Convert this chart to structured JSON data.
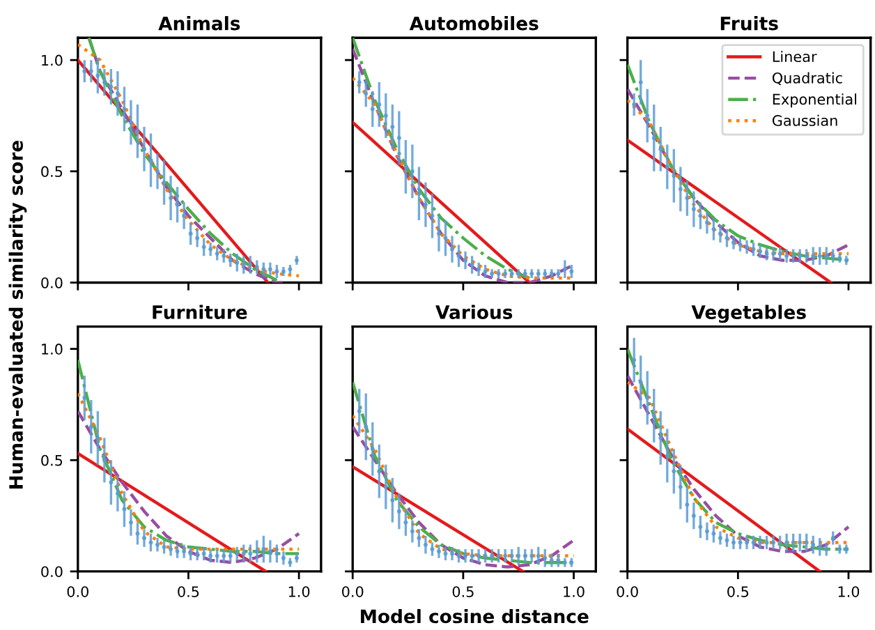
{
  "chart_data": [
    {
      "type": "line",
      "title": "Animals",
      "ylabel": "Human-evaluated similarity score",
      "xlim": [
        0,
        1.1
      ],
      "ylim": [
        0,
        1.1
      ],
      "xticks": [
        {
          "value": 0,
          "label": null
        },
        {
          "value": 0.5,
          "label": null
        },
        {
          "value": 1,
          "label": null
        }
      ],
      "yticks": [
        {
          "value": 0,
          "label": "0.0"
        },
        {
          "value": 0.5,
          "label": "0.5"
        },
        {
          "value": 1,
          "label": "1.0"
        }
      ],
      "tick_labels": "y",
      "grid": false,
      "legend": false,
      "series": [
        {
          "type": "scatter",
          "color": "#5b9bd5",
          "marker": "circle",
          "x": [
            0.03,
            0.06,
            0.09,
            0.12,
            0.15,
            0.18,
            0.21,
            0.24,
            0.27,
            0.3,
            0.33,
            0.36,
            0.39,
            0.42,
            0.45,
            0.48,
            0.51,
            0.54,
            0.57,
            0.6,
            0.63,
            0.66,
            0.69,
            0.72,
            0.75,
            0.78,
            0.81,
            0.84,
            0.87,
            0.9,
            0.93,
            0.96,
            0.99
          ],
          "values": [
            0.95,
            0.95,
            0.93,
            0.9,
            0.88,
            0.85,
            0.78,
            0.72,
            0.68,
            0.6,
            0.55,
            0.5,
            0.45,
            0.38,
            0.35,
            0.3,
            0.22,
            0.2,
            0.16,
            0.15,
            0.13,
            0.12,
            0.1,
            0.09,
            0.08,
            0.08,
            0.07,
            0.06,
            0.06,
            0.05,
            0.05,
            0.06,
            0.1
          ],
          "errors": [
            0.05,
            0.05,
            0.08,
            0.06,
            0.08,
            0.1,
            0.1,
            0.1,
            0.12,
            0.1,
            0.12,
            0.08,
            0.1,
            0.1,
            0.08,
            0.06,
            0.05,
            0.04,
            0.04,
            0.03,
            0.03,
            0.03,
            0.03,
            0.04,
            0.04,
            0.04,
            0.03,
            0.03,
            0.03,
            0.03,
            0.02,
            0.02,
            0.02
          ]
        },
        {
          "type": "line",
          "color": "#e41a1c",
          "line_style": "solid",
          "x": [
            0,
            0.86
          ],
          "values": [
            1.0,
            0
          ]
        },
        {
          "type": "line",
          "color": "#984ea3",
          "line_style": "dashed",
          "x": [
            0.05,
            0.1,
            0.2,
            0.3,
            0.4,
            0.5,
            0.6,
            0.7,
            0.8,
            0.9,
            0.95
          ],
          "values": [
            1.1,
            0.95,
            0.78,
            0.6,
            0.43,
            0.3,
            0.2,
            0.1,
            0.04,
            0.0,
            0.0
          ]
        },
        {
          "type": "line",
          "color": "#4daf4a",
          "line_style": "dashdot",
          "x": [
            0.05,
            0.1,
            0.2,
            0.3,
            0.4,
            0.5,
            0.6,
            0.7,
            0.8,
            0.9
          ],
          "values": [
            1.1,
            0.95,
            0.75,
            0.58,
            0.45,
            0.33,
            0.22,
            0.13,
            0.06,
            0.01
          ]
        },
        {
          "type": "line",
          "color": "#ff7f00",
          "line_style": "dotted",
          "x": [
            0,
            0.1,
            0.2,
            0.3,
            0.4,
            0.5,
            0.6,
            0.7,
            0.8,
            0.9,
            1.0
          ],
          "values": [
            1.07,
            1.0,
            0.82,
            0.6,
            0.42,
            0.28,
            0.17,
            0.1,
            0.06,
            0.04,
            0.03
          ]
        }
      ]
    },
    {
      "type": "line",
      "title": "Automobiles",
      "xlim": [
        0,
        1.1
      ],
      "ylim": [
        0,
        1.1
      ],
      "xticks": [
        {
          "value": 0,
          "label": null
        },
        {
          "value": 0.5,
          "label": null
        },
        {
          "value": 1,
          "label": null
        }
      ],
      "yticks": [
        {
          "value": 0,
          "label": null
        },
        {
          "value": 0.5,
          "label": null
        },
        {
          "value": 1,
          "label": null
        }
      ],
      "tick_labels": false,
      "grid": false,
      "legend": false,
      "series": [
        {
          "type": "scatter",
          "color": "#5b9bd5",
          "marker": "circle",
          "x": [
            0.03,
            0.06,
            0.09,
            0.12,
            0.15,
            0.18,
            0.21,
            0.24,
            0.27,
            0.3,
            0.33,
            0.36,
            0.39,
            0.42,
            0.45,
            0.48,
            0.51,
            0.54,
            0.57,
            0.6,
            0.63,
            0.66,
            0.69,
            0.72,
            0.75,
            0.78,
            0.81,
            0.84,
            0.87,
            0.9,
            0.93,
            0.96,
            0.99
          ],
          "values": [
            0.9,
            0.85,
            0.78,
            0.8,
            0.75,
            0.7,
            0.65,
            0.52,
            0.5,
            0.4,
            0.35,
            0.3,
            0.22,
            0.2,
            0.15,
            0.12,
            0.1,
            0.08,
            0.06,
            0.05,
            0.04,
            0.04,
            0.04,
            0.04,
            0.04,
            0.04,
            0.04,
            0.04,
            0.04,
            0.04,
            0.04,
            0.06,
            0.05
          ],
          "errors": [
            0.05,
            0.06,
            0.08,
            0.1,
            0.1,
            0.1,
            0.12,
            0.12,
            0.12,
            0.12,
            0.1,
            0.1,
            0.08,
            0.08,
            0.06,
            0.05,
            0.04,
            0.04,
            0.03,
            0.03,
            0.02,
            0.02,
            0.02,
            0.02,
            0.02,
            0.02,
            0.02,
            0.02,
            0.02,
            0.02,
            0.02,
            0.04,
            0.03
          ]
        },
        {
          "type": "line",
          "color": "#e41a1c",
          "line_style": "solid",
          "x": [
            0,
            0.8
          ],
          "values": [
            0.72,
            0
          ]
        },
        {
          "type": "line",
          "color": "#984ea3",
          "line_style": "dashed",
          "x": [
            0,
            0.1,
            0.2,
            0.3,
            0.4,
            0.5,
            0.6,
            0.7,
            0.8,
            0.9,
            1.0
          ],
          "values": [
            1.05,
            0.8,
            0.57,
            0.38,
            0.22,
            0.1,
            0.03,
            0.0,
            0.0,
            0.03,
            0.08
          ]
        },
        {
          "type": "line",
          "color": "#4daf4a",
          "line_style": "dashdot",
          "x": [
            0,
            0.1,
            0.2,
            0.3,
            0.4,
            0.5,
            0.6,
            0.7,
            0.8
          ],
          "values": [
            1.1,
            0.82,
            0.6,
            0.42,
            0.29,
            0.2,
            0.12,
            0.06,
            0.02
          ]
        },
        {
          "type": "line",
          "color": "#ff7f00",
          "line_style": "dotted",
          "x": [
            0,
            0.1,
            0.2,
            0.3,
            0.4,
            0.5,
            0.6,
            0.7,
            0.8,
            0.9,
            1.0
          ],
          "values": [
            0.92,
            0.8,
            0.58,
            0.38,
            0.22,
            0.12,
            0.06,
            0.03,
            0.02,
            0.02,
            0.02
          ]
        }
      ]
    },
    {
      "type": "line",
      "title": "Fruits",
      "xlim": [
        0,
        1.1
      ],
      "ylim": [
        0,
        1.1
      ],
      "xticks": [
        {
          "value": 0,
          "label": null
        },
        {
          "value": 0.5,
          "label": null
        },
        {
          "value": 1,
          "label": null
        }
      ],
      "yticks": [
        {
          "value": 0,
          "label": null
        },
        {
          "value": 0.5,
          "label": null
        },
        {
          "value": 1,
          "label": null
        }
      ],
      "tick_labels": false,
      "grid": false,
      "legend": "top right",
      "series": [
        {
          "type": "scatter",
          "color": "#5b9bd5",
          "marker": "circle",
          "x": [
            0.03,
            0.06,
            0.09,
            0.12,
            0.15,
            0.18,
            0.21,
            0.24,
            0.27,
            0.3,
            0.33,
            0.36,
            0.39,
            0.42,
            0.45,
            0.48,
            0.51,
            0.54,
            0.57,
            0.6,
            0.63,
            0.66,
            0.69,
            0.72,
            0.75,
            0.78,
            0.81,
            0.84,
            0.87,
            0.9,
            0.93,
            0.96,
            0.99
          ],
          "values": [
            0.8,
            0.9,
            0.75,
            0.65,
            0.6,
            0.52,
            0.48,
            0.42,
            0.38,
            0.33,
            0.3,
            0.27,
            0.24,
            0.22,
            0.2,
            0.18,
            0.17,
            0.16,
            0.15,
            0.14,
            0.13,
            0.13,
            0.13,
            0.12,
            0.12,
            0.12,
            0.12,
            0.12,
            0.12,
            0.12,
            0.12,
            0.11,
            0.1
          ],
          "errors": [
            0.05,
            0.1,
            0.12,
            0.15,
            0.1,
            0.1,
            0.12,
            0.1,
            0.08,
            0.08,
            0.06,
            0.05,
            0.05,
            0.04,
            0.04,
            0.03,
            0.03,
            0.03,
            0.03,
            0.03,
            0.03,
            0.03,
            0.03,
            0.03,
            0.03,
            0.03,
            0.03,
            0.04,
            0.04,
            0.04,
            0.03,
            0.02,
            0.02
          ]
        },
        {
          "type": "line",
          "name": "Linear",
          "color": "#e41a1c",
          "line_style": "solid",
          "x": [
            0,
            0.92
          ],
          "values": [
            0.64,
            0
          ]
        },
        {
          "type": "line",
          "name": "Quadratic",
          "color": "#984ea3",
          "line_style": "dashed",
          "x": [
            0,
            0.1,
            0.2,
            0.3,
            0.4,
            0.5,
            0.6,
            0.7,
            0.8,
            0.9,
            1.0
          ],
          "values": [
            0.87,
            0.7,
            0.52,
            0.38,
            0.27,
            0.18,
            0.12,
            0.1,
            0.1,
            0.12,
            0.17
          ]
        },
        {
          "type": "line",
          "name": "Exponential",
          "color": "#4daf4a",
          "line_style": "dashdot",
          "x": [
            0,
            0.1,
            0.2,
            0.3,
            0.4,
            0.5,
            0.6,
            0.7,
            0.8,
            0.9,
            1.0
          ],
          "values": [
            0.98,
            0.72,
            0.52,
            0.38,
            0.28,
            0.21,
            0.17,
            0.14,
            0.12,
            0.11,
            0.1
          ]
        },
        {
          "type": "line",
          "name": "Gaussian",
          "color": "#ff7f00",
          "line_style": "dotted",
          "x": [
            0,
            0.1,
            0.2,
            0.3,
            0.4,
            0.5,
            0.6,
            0.7,
            0.8,
            0.9,
            1.0
          ],
          "values": [
            0.82,
            0.72,
            0.52,
            0.35,
            0.23,
            0.17,
            0.14,
            0.13,
            0.13,
            0.13,
            0.13
          ]
        }
      ]
    },
    {
      "type": "line",
      "title": "Furniture",
      "xlim": [
        0,
        1.1
      ],
      "ylim": [
        0,
        1.1
      ],
      "xticks": [
        {
          "value": 0,
          "label": "0.0"
        },
        {
          "value": 0.5,
          "label": "0.5"
        },
        {
          "value": 1,
          "label": "1.0"
        }
      ],
      "yticks": [
        {
          "value": 0,
          "label": "0.0"
        },
        {
          "value": 0.5,
          "label": "0.5"
        },
        {
          "value": 1,
          "label": "1.0"
        }
      ],
      "grid": false,
      "legend": false,
      "series": [
        {
          "type": "scatter",
          "color": "#5b9bd5",
          "marker": "circle",
          "x": [
            0.03,
            0.06,
            0.09,
            0.12,
            0.15,
            0.18,
            0.21,
            0.24,
            0.27,
            0.3,
            0.33,
            0.36,
            0.39,
            0.42,
            0.45,
            0.48,
            0.51,
            0.54,
            0.57,
            0.6,
            0.63,
            0.66,
            0.69,
            0.72,
            0.75,
            0.78,
            0.81,
            0.84,
            0.87,
            0.9,
            0.93,
            0.96,
            0.99
          ],
          "values": [
            0.78,
            0.65,
            0.6,
            0.5,
            0.4,
            0.35,
            0.28,
            0.22,
            0.17,
            0.15,
            0.13,
            0.12,
            0.11,
            0.1,
            0.09,
            0.09,
            0.08,
            0.08,
            0.08,
            0.07,
            0.07,
            0.07,
            0.07,
            0.08,
            0.08,
            0.08,
            0.09,
            0.1,
            0.09,
            0.08,
            0.06,
            0.04,
            0.06
          ],
          "errors": [
            0.1,
            0.12,
            0.12,
            0.1,
            0.1,
            0.08,
            0.08,
            0.06,
            0.05,
            0.04,
            0.04,
            0.03,
            0.03,
            0.03,
            0.03,
            0.03,
            0.03,
            0.03,
            0.03,
            0.03,
            0.03,
            0.03,
            0.03,
            0.03,
            0.04,
            0.04,
            0.05,
            0.06,
            0.05,
            0.04,
            0.03,
            0.02,
            0.02
          ]
        },
        {
          "type": "line",
          "color": "#e41a1c",
          "line_style": "solid",
          "x": [
            0,
            0.85
          ],
          "values": [
            0.53,
            0
          ]
        },
        {
          "type": "line",
          "color": "#984ea3",
          "line_style": "dashed",
          "x": [
            0,
            0.1,
            0.2,
            0.3,
            0.4,
            0.5,
            0.6,
            0.7,
            0.8,
            0.9,
            1.0
          ],
          "values": [
            0.72,
            0.55,
            0.4,
            0.27,
            0.16,
            0.09,
            0.05,
            0.04,
            0.06,
            0.1,
            0.17
          ]
        },
        {
          "type": "line",
          "color": "#4daf4a",
          "line_style": "dashdot",
          "x": [
            0,
            0.1,
            0.2,
            0.3,
            0.4,
            0.5,
            0.6,
            0.7,
            0.8,
            0.9,
            1.0
          ],
          "values": [
            0.95,
            0.55,
            0.32,
            0.2,
            0.14,
            0.11,
            0.1,
            0.09,
            0.09,
            0.08,
            0.08
          ]
        },
        {
          "type": "line",
          "color": "#ff7f00",
          "line_style": "dotted",
          "x": [
            0,
            0.1,
            0.2,
            0.3,
            0.4,
            0.5,
            0.6,
            0.7,
            0.8,
            0.9,
            1.0
          ],
          "values": [
            0.8,
            0.6,
            0.35,
            0.18,
            0.11,
            0.1,
            0.1,
            0.1,
            0.1,
            0.1,
            0.1
          ]
        }
      ]
    },
    {
      "type": "line",
      "title": "Various",
      "xlabel": "Model cosine distance",
      "xlim": [
        0,
        1.1
      ],
      "ylim": [
        0,
        1.1
      ],
      "xticks": [
        {
          "value": 0,
          "label": "0.0"
        },
        {
          "value": 0.5,
          "label": "0.5"
        },
        {
          "value": 1,
          "label": "1.0"
        }
      ],
      "yticks": [
        {
          "value": 0,
          "label": null
        },
        {
          "value": 0.5,
          "label": null
        },
        {
          "value": 1,
          "label": null
        }
      ],
      "tick_labels": "x",
      "grid": false,
      "legend": false,
      "series": [
        {
          "type": "scatter",
          "color": "#5b9bd5",
          "marker": "circle",
          "x": [
            0.03,
            0.06,
            0.09,
            0.12,
            0.15,
            0.18,
            0.21,
            0.24,
            0.27,
            0.3,
            0.33,
            0.36,
            0.39,
            0.42,
            0.45,
            0.48,
            0.51,
            0.54,
            0.57,
            0.6,
            0.63,
            0.66,
            0.69,
            0.72,
            0.75,
            0.78,
            0.81,
            0.84,
            0.87,
            0.9,
            0.93,
            0.96,
            0.99
          ],
          "values": [
            0.72,
            0.65,
            0.55,
            0.45,
            0.38,
            0.32,
            0.27,
            0.22,
            0.18,
            0.15,
            0.12,
            0.1,
            0.09,
            0.08,
            0.08,
            0.07,
            0.07,
            0.07,
            0.07,
            0.07,
            0.07,
            0.07,
            0.07,
            0.07,
            0.07,
            0.07,
            0.07,
            0.07,
            0.06,
            0.05,
            0.05,
            0.04,
            0.04
          ],
          "errors": [
            0.1,
            0.15,
            0.12,
            0.12,
            0.1,
            0.1,
            0.08,
            0.06,
            0.05,
            0.04,
            0.04,
            0.03,
            0.03,
            0.03,
            0.03,
            0.03,
            0.03,
            0.03,
            0.03,
            0.03,
            0.03,
            0.03,
            0.03,
            0.03,
            0.04,
            0.03,
            0.03,
            0.04,
            0.04,
            0.03,
            0.03,
            0.02,
            0.02
          ]
        },
        {
          "type": "line",
          "color": "#e41a1c",
          "line_style": "solid",
          "x": [
            0,
            0.77
          ],
          "values": [
            0.47,
            0
          ]
        },
        {
          "type": "line",
          "color": "#984ea3",
          "line_style": "dashed",
          "x": [
            0,
            0.1,
            0.2,
            0.3,
            0.4,
            0.5,
            0.6,
            0.7,
            0.8,
            0.9,
            1.0
          ],
          "values": [
            0.65,
            0.5,
            0.35,
            0.22,
            0.12,
            0.06,
            0.03,
            0.02,
            0.03,
            0.07,
            0.14
          ]
        },
        {
          "type": "line",
          "color": "#4daf4a",
          "line_style": "dashdot",
          "x": [
            0,
            0.1,
            0.2,
            0.3,
            0.4,
            0.5,
            0.6,
            0.7,
            0.8,
            0.9,
            1.0
          ],
          "values": [
            0.85,
            0.52,
            0.32,
            0.2,
            0.12,
            0.08,
            0.06,
            0.05,
            0.04,
            0.04,
            0.04
          ]
        },
        {
          "type": "line",
          "color": "#ff7f00",
          "line_style": "dotted",
          "x": [
            0,
            0.1,
            0.2,
            0.3,
            0.4,
            0.5,
            0.6,
            0.7,
            0.8,
            0.9,
            1.0
          ],
          "values": [
            0.7,
            0.55,
            0.33,
            0.17,
            0.1,
            0.08,
            0.07,
            0.07,
            0.07,
            0.07,
            0.07
          ]
        }
      ]
    },
    {
      "type": "line",
      "title": "Vegetables",
      "xlim": [
        0,
        1.1
      ],
      "ylim": [
        0,
        1.1
      ],
      "xticks": [
        {
          "value": 0,
          "label": "0.0"
        },
        {
          "value": 0.5,
          "label": "0.5"
        },
        {
          "value": 1,
          "label": "1.0"
        }
      ],
      "yticks": [
        {
          "value": 0,
          "label": null
        },
        {
          "value": 0.5,
          "label": null
        },
        {
          "value": 1,
          "label": null
        }
      ],
      "tick_labels": "x",
      "grid": false,
      "legend": false,
      "series": [
        {
          "type": "scatter",
          "color": "#5b9bd5",
          "marker": "circle",
          "x": [
            0.03,
            0.06,
            0.09,
            0.12,
            0.15,
            0.18,
            0.21,
            0.24,
            0.27,
            0.3,
            0.33,
            0.36,
            0.39,
            0.42,
            0.45,
            0.48,
            0.51,
            0.54,
            0.57,
            0.6,
            0.63,
            0.66,
            0.69,
            0.72,
            0.75,
            0.78,
            0.81,
            0.84,
            0.87,
            0.9,
            0.93,
            0.96,
            0.99
          ],
          "values": [
            0.95,
            0.85,
            0.78,
            0.7,
            0.6,
            0.52,
            0.45,
            0.38,
            0.3,
            0.25,
            0.2,
            0.18,
            0.17,
            0.15,
            0.14,
            0.13,
            0.13,
            0.13,
            0.13,
            0.13,
            0.13,
            0.13,
            0.13,
            0.13,
            0.13,
            0.13,
            0.13,
            0.12,
            0.11,
            0.1,
            0.15,
            0.1,
            0.1
          ],
          "errors": [
            0.1,
            0.12,
            0.12,
            0.12,
            0.12,
            0.12,
            0.1,
            0.1,
            0.08,
            0.06,
            0.05,
            0.04,
            0.04,
            0.03,
            0.03,
            0.03,
            0.03,
            0.03,
            0.03,
            0.03,
            0.03,
            0.03,
            0.03,
            0.04,
            0.04,
            0.04,
            0.04,
            0.04,
            0.04,
            0.03,
            0.03,
            0.02,
            0.02
          ]
        },
        {
          "type": "line",
          "color": "#e41a1c",
          "line_style": "solid",
          "x": [
            0,
            0.87
          ],
          "values": [
            0.64,
            0
          ]
        },
        {
          "type": "line",
          "color": "#984ea3",
          "line_style": "dashed",
          "x": [
            0,
            0.1,
            0.2,
            0.3,
            0.4,
            0.5,
            0.6,
            0.7,
            0.8,
            0.9,
            1.0
          ],
          "values": [
            0.88,
            0.7,
            0.52,
            0.37,
            0.25,
            0.16,
            0.11,
            0.09,
            0.09,
            0.12,
            0.2
          ]
        },
        {
          "type": "line",
          "color": "#4daf4a",
          "line_style": "dashdot",
          "x": [
            0,
            0.1,
            0.2,
            0.3,
            0.4,
            0.5,
            0.6,
            0.7,
            0.8,
            0.9,
            1.0
          ],
          "values": [
            1.0,
            0.75,
            0.5,
            0.33,
            0.22,
            0.17,
            0.14,
            0.12,
            0.11,
            0.1,
            0.1
          ]
        },
        {
          "type": "line",
          "color": "#ff7f00",
          "line_style": "dotted",
          "x": [
            0,
            0.1,
            0.2,
            0.3,
            0.4,
            0.5,
            0.6,
            0.7,
            0.8,
            0.9,
            1.0
          ],
          "values": [
            0.85,
            0.78,
            0.55,
            0.33,
            0.2,
            0.15,
            0.13,
            0.13,
            0.13,
            0.13,
            0.13
          ]
        }
      ]
    }
  ]
}
